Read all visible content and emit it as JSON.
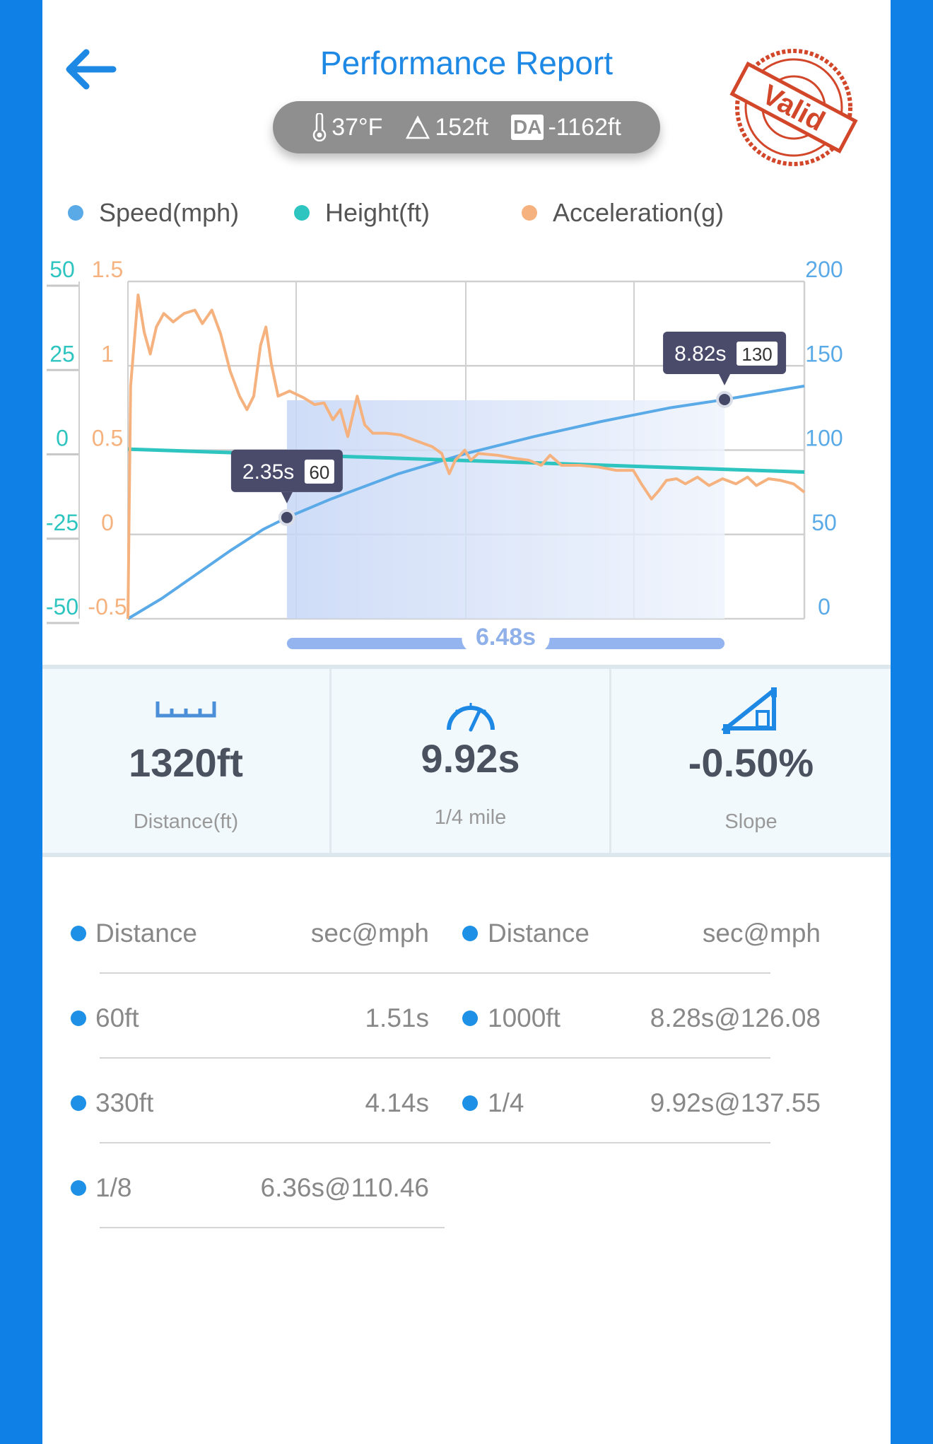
{
  "header": {
    "title": "Performance Report",
    "back_icon": "arrow-left-icon",
    "stamp_text": "Valid"
  },
  "conditions": {
    "temperature": "37°F",
    "altitude": "152ft",
    "da_label": "DA",
    "density_altitude": "-1162ft"
  },
  "legend": [
    {
      "label": "Speed(mph)",
      "color": "#5aaae8"
    },
    {
      "label": "Height(ft)",
      "color": "#2ec4c0"
    },
    {
      "label": "Acceleration(g)",
      "color": "#f5b27e"
    }
  ],
  "chart_data": {
    "type": "line",
    "x_range": [
      0,
      10
    ],
    "grid": true,
    "axes": {
      "height_left": {
        "ticks": [
          "50",
          "25",
          "0",
          "-25",
          "-50"
        ],
        "range": [
          -50,
          50
        ],
        "color": "#2ec4c0"
      },
      "accel_left": {
        "ticks": [
          "1.5",
          "1",
          "0.5",
          "0",
          "-0.5"
        ],
        "range": [
          -0.5,
          1.5
        ],
        "color": "#f5b27e"
      },
      "speed_right": {
        "ticks": [
          "200",
          "150",
          "100",
          "50",
          "0"
        ],
        "range": [
          0,
          200
        ],
        "color": "#5aaae8"
      }
    },
    "series": [
      {
        "name": "Speed(mph)",
        "axis": "speed_right",
        "color": "#5aaae8",
        "x": [
          0,
          0.5,
          1,
          1.5,
          2,
          2.35,
          3,
          4,
          5,
          6,
          7,
          8,
          8.82,
          10
        ],
        "y": [
          0,
          12,
          26,
          40,
          53,
          60,
          71,
          86,
          98,
          108,
          117,
          125,
          130,
          138
        ]
      },
      {
        "name": "Height(ft)",
        "axis": "height_left",
        "color": "#2ec4c0",
        "x": [
          0,
          10
        ],
        "y": [
          0.3,
          -6.5
        ]
      },
      {
        "name": "Acceleration(g)",
        "axis": "accel_left",
        "color": "#f5b27e",
        "x": [
          0,
          0.04,
          0.15,
          0.24,
          0.33,
          0.42,
          0.53,
          0.67,
          0.83,
          0.99,
          1.1,
          1.24,
          1.37,
          1.51,
          1.65,
          1.76,
          1.86,
          1.96,
          2.04,
          2.12,
          2.22,
          2.39,
          2.6,
          2.76,
          2.9,
          3.03,
          3.14,
          3.25,
          3.39,
          3.5,
          3.62,
          3.82,
          4.03,
          4.23,
          4.5,
          4.64,
          4.75,
          4.84,
          4.98,
          5.07,
          5.18,
          5.46,
          5.73,
          5.93,
          6.11,
          6.24,
          6.41,
          6.68,
          6.95,
          7.22,
          7.47,
          7.59,
          7.74,
          7.85,
          7.96,
          8.11,
          8.24,
          8.42,
          8.59,
          8.79,
          8.99,
          9.16,
          9.29,
          9.47,
          9.65,
          9.84,
          10.0
        ],
        "y": [
          -0.5,
          0.88,
          1.42,
          1.2,
          1.07,
          1.23,
          1.31,
          1.26,
          1.31,
          1.33,
          1.25,
          1.33,
          1.19,
          0.97,
          0.82,
          0.74,
          0.82,
          1.12,
          1.23,
          1.01,
          0.82,
          0.85,
          0.81,
          0.77,
          0.78,
          0.68,
          0.74,
          0.58,
          0.82,
          0.65,
          0.6,
          0.6,
          0.59,
          0.56,
          0.52,
          0.48,
          0.36,
          0.44,
          0.5,
          0.44,
          0.48,
          0.47,
          0.45,
          0.44,
          0.41,
          0.47,
          0.41,
          0.41,
          0.4,
          0.38,
          0.38,
          0.3,
          0.21,
          0.26,
          0.32,
          0.33,
          0.3,
          0.34,
          0.29,
          0.33,
          0.3,
          0.34,
          0.29,
          0.33,
          0.32,
          0.3,
          0.25
        ]
      }
    ],
    "markers": [
      {
        "x": 2.35,
        "speed": 60,
        "time_label": "2.35s",
        "value_label": "60"
      },
      {
        "x": 8.82,
        "speed": 130,
        "time_label": "8.82s",
        "value_label": "130"
      }
    ],
    "selection": {
      "from": 2.35,
      "to": 8.82,
      "label": "6.48s"
    }
  },
  "stats": [
    {
      "icon": "ruler-icon",
      "value": "1320ft",
      "label": "Distance(ft)"
    },
    {
      "icon": "speedometer-icon",
      "value": "9.92s",
      "label": "1/4 mile"
    },
    {
      "icon": "slope-icon",
      "value": "-0.50%",
      "label": "Slope"
    }
  ],
  "splits": {
    "headers": [
      {
        "label": "Distance",
        "value": "sec@mph"
      },
      {
        "label": "Distance",
        "value": "sec@mph"
      }
    ],
    "left": [
      {
        "label": "60ft",
        "value": "1.51s"
      },
      {
        "label": "330ft",
        "value": "4.14s"
      },
      {
        "label": "1/8",
        "value": "6.36s@110.46"
      }
    ],
    "right": [
      {
        "label": "1000ft",
        "value": "8.28s@126.08"
      },
      {
        "label": "1/4",
        "value": "9.92s@137.55"
      }
    ]
  }
}
